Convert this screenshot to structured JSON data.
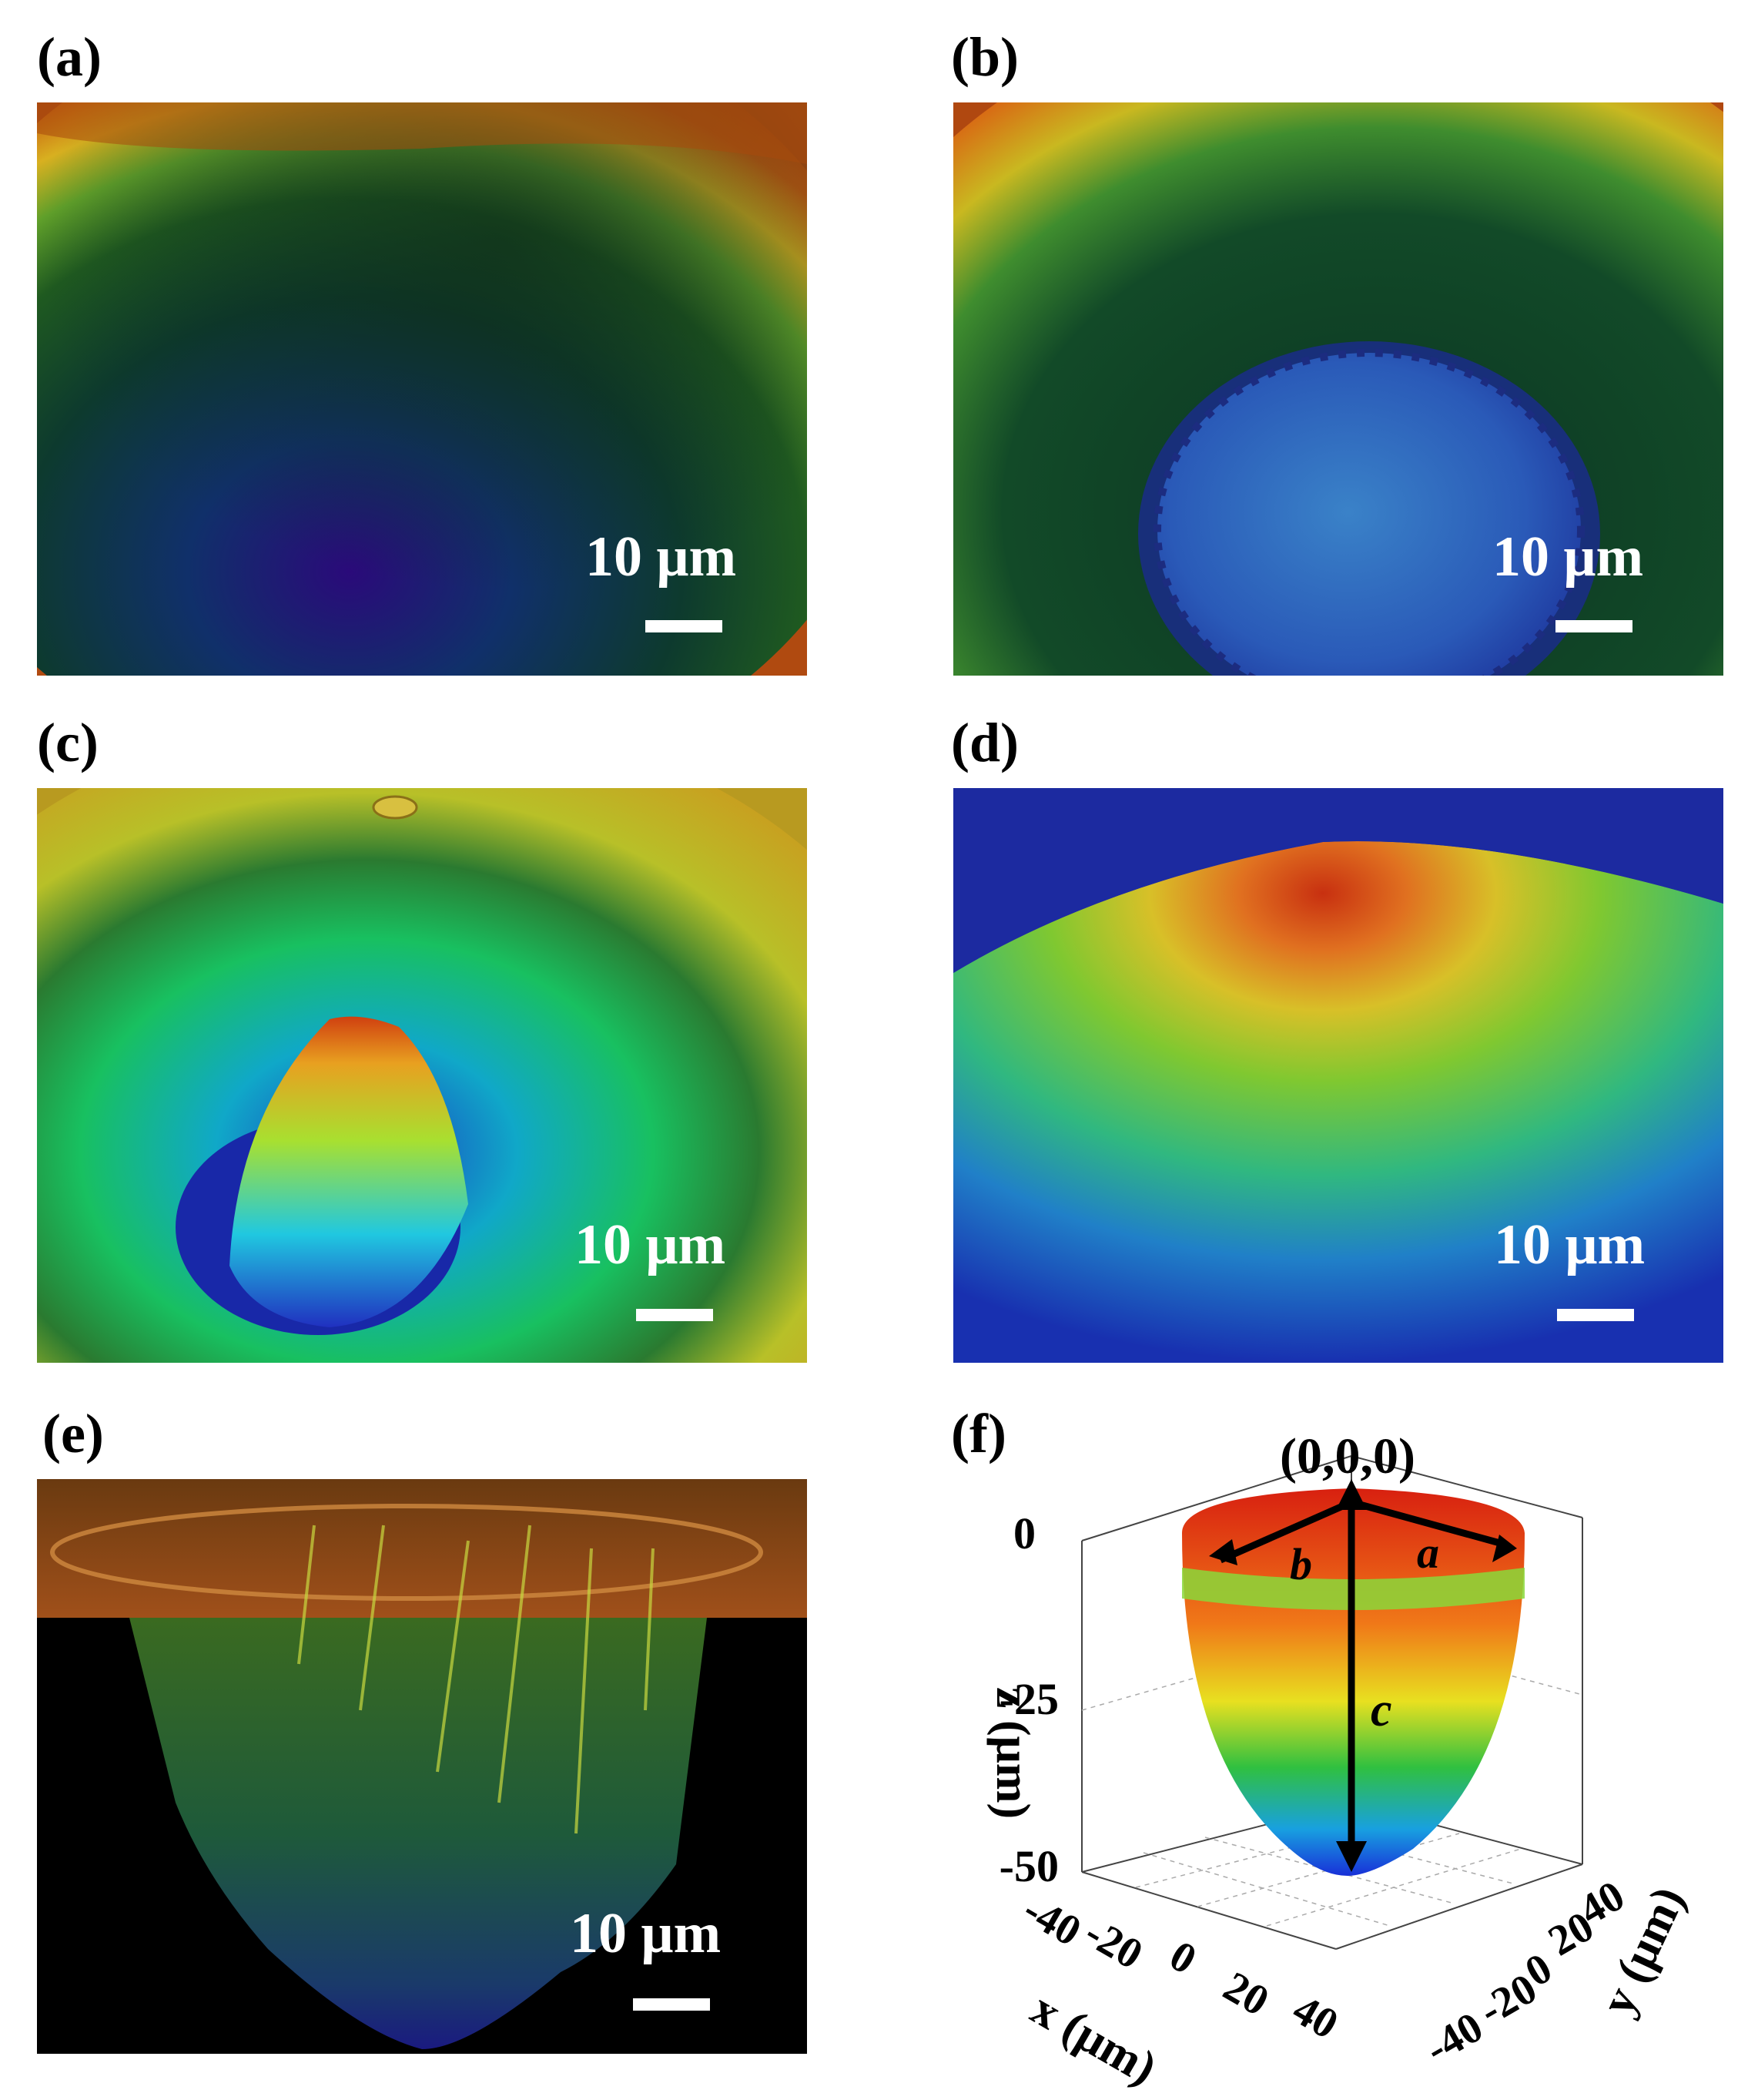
{
  "panels": [
    {
      "id": "a",
      "label": "(a)",
      "scale_text": "10 μm"
    },
    {
      "id": "b",
      "label": "(b)",
      "scale_text": "10 μm"
    },
    {
      "id": "c",
      "label": "(c)",
      "scale_text": "10 μm"
    },
    {
      "id": "d",
      "label": "(d)",
      "scale_text": "10 μm"
    },
    {
      "id": "e",
      "label": "(e)",
      "scale_text": "10 μm"
    },
    {
      "id": "f",
      "label": "(f)"
    }
  ],
  "plot3d": {
    "origin_label": "(0,0,0)",
    "a_label": "a",
    "b_label": "b",
    "c_label": "c",
    "z_axis_label": "z (μm)",
    "x_axis_label": "x (μm)",
    "y_axis_label": "y (μm)",
    "z_ticks": [
      "0",
      "-25",
      "-50"
    ],
    "x_ticks": [
      "-40",
      "-20",
      "0",
      "20",
      "40"
    ],
    "y_ticks": [
      "40",
      "20",
      "0",
      "-20",
      "-40"
    ]
  }
}
